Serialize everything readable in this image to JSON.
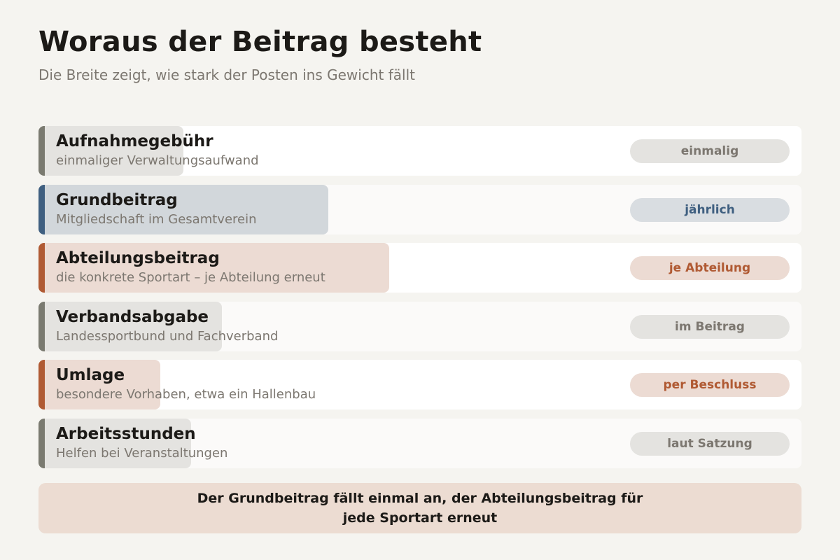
{
  "header": {
    "title": "Woraus der Beitrag besteht",
    "subtitle": "Die Breite zeigt, wie stark der Posten ins Gewicht fällt"
  },
  "colors": {
    "gray": {
      "accent": "#7a7a70",
      "fill": "#e4e3e0",
      "badge_bg": "#e4e3e0",
      "badge_text": "#7c7770"
    },
    "blue": {
      "accent": "#3f5f80",
      "fill": "#d2d7db",
      "badge_bg": "#d9dde1",
      "badge_text": "#3f5f80"
    },
    "rust": {
      "accent": "#b05a33",
      "fill": "#ecdbd3",
      "badge_bg": "#ecdbd3",
      "badge_text": "#b05a33"
    }
  },
  "items": [
    {
      "title": "Aufnahmegebühr",
      "description": "einmaliger Verwaltungsaufwand",
      "badge": "einmalig",
      "weight": 0.19,
      "color": "gray"
    },
    {
      "title": "Grundbeitrag",
      "description": "Mitgliedschaft im Gesamtverein",
      "badge": "jährlich",
      "weight": 0.38,
      "color": "blue"
    },
    {
      "title": "Abteilungsbeitrag",
      "description": "die konkrete Sportart – je Abteilung erneut",
      "badge": "je Abteilung",
      "weight": 0.46,
      "color": "rust"
    },
    {
      "title": "Verbandsabgabe",
      "description": "Landessportbund und Fachverband",
      "badge": "im Beitrag",
      "weight": 0.24,
      "color": "gray"
    },
    {
      "title": "Umlage",
      "description": "besondere Vorhaben, etwa ein Hallenbau",
      "badge": "per Beschluss",
      "weight": 0.16,
      "color": "rust"
    },
    {
      "title": "Arbeitsstunden",
      "description": "Helfen bei Veranstaltungen",
      "badge": "laut Satzung",
      "weight": 0.2,
      "color": "gray"
    }
  ],
  "footer": {
    "note": "Der Grundbeitrag fällt einmal an, der Abteilungsbeitrag für jede Sportart erneut"
  }
}
